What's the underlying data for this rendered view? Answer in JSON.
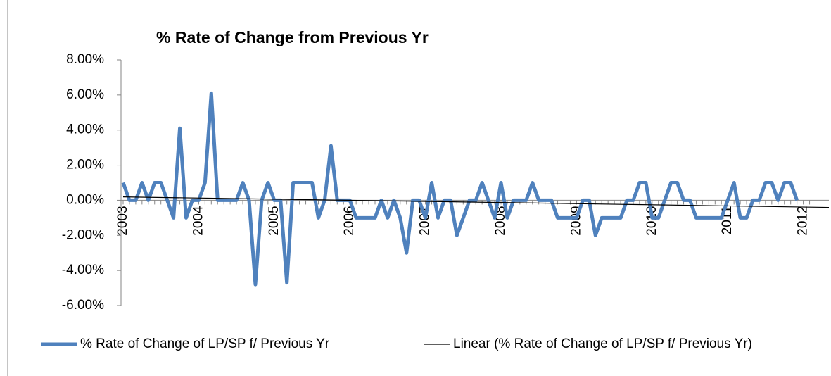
{
  "chart_data": {
    "type": "line",
    "title": "% Rate of Change from Previous Yr",
    "categories": [
      "2003",
      null,
      null,
      null,
      null,
      null,
      null,
      null,
      null,
      null,
      null,
      null,
      "2004",
      null,
      null,
      null,
      null,
      null,
      null,
      null,
      null,
      null,
      null,
      null,
      "2005",
      null,
      null,
      null,
      null,
      null,
      null,
      null,
      null,
      null,
      null,
      null,
      "2006",
      null,
      null,
      null,
      null,
      null,
      null,
      null,
      null,
      null,
      null,
      null,
      "2007",
      null,
      null,
      null,
      null,
      null,
      null,
      null,
      null,
      null,
      null,
      null,
      "2008",
      null,
      null,
      null,
      null,
      null,
      null,
      null,
      null,
      null,
      null,
      null,
      "2009",
      null,
      null,
      null,
      null,
      null,
      null,
      null,
      null,
      null,
      null,
      null,
      "2010",
      null,
      null,
      null,
      null,
      null,
      null,
      null,
      null,
      null,
      null,
      null,
      "2011",
      null,
      null,
      null,
      null,
      null,
      null,
      null,
      null,
      null,
      null,
      null,
      "2012",
      null
    ],
    "series": [
      {
        "name": "% Rate of Change of LP/SP f/ Previous Yr",
        "color": "#4f81bd",
        "values": [
          1,
          0,
          0,
          1,
          0,
          1,
          1,
          0,
          -1,
          4.1,
          -1,
          0,
          0,
          1,
          6.1,
          0,
          0,
          0,
          0,
          1,
          0,
          -4.8,
          0,
          1,
          0,
          0,
          -4.7,
          1,
          1,
          1,
          1,
          -1,
          0,
          3.1,
          0,
          0,
          0,
          -1,
          -1,
          -1,
          -1,
          0,
          -1,
          0,
          -1,
          -3,
          0,
          0,
          -1,
          1,
          -1,
          0,
          0,
          -2,
          -1,
          0,
          0,
          1,
          0,
          -1,
          1,
          -1,
          0,
          0,
          0,
          1,
          0,
          0,
          0,
          -1,
          -1,
          -1,
          -1,
          0,
          0,
          -2,
          -1,
          -1,
          -1,
          -1,
          0,
          0,
          1,
          1,
          -1,
          -1,
          0,
          1,
          1,
          0,
          0,
          -1,
          -1,
          -1,
          -1,
          -1,
          0,
          1,
          -1,
          -1,
          0,
          0,
          1,
          1,
          0,
          1,
          1,
          0,
          null,
          null
        ]
      }
    ],
    "trendline": {
      "name": "Linear (% Rate of Change of LP/SP f/ Previous Yr)",
      "color": "#000000"
    },
    "ylim": [
      -6,
      8
    ],
    "yticks": [
      {
        "value": -6,
        "label": "-6.00%"
      },
      {
        "value": -4,
        "label": "-4.00%"
      },
      {
        "value": -2,
        "label": "-2.00%"
      },
      {
        "value": 0,
        "label": "0.00%"
      },
      {
        "value": 2,
        "label": "2.00%"
      },
      {
        "value": 4,
        "label": "4.00%"
      },
      {
        "value": 6,
        "label": "6.00%"
      },
      {
        "value": 8,
        "label": "8.00%"
      }
    ],
    "grid": false,
    "legend": "bottom"
  }
}
